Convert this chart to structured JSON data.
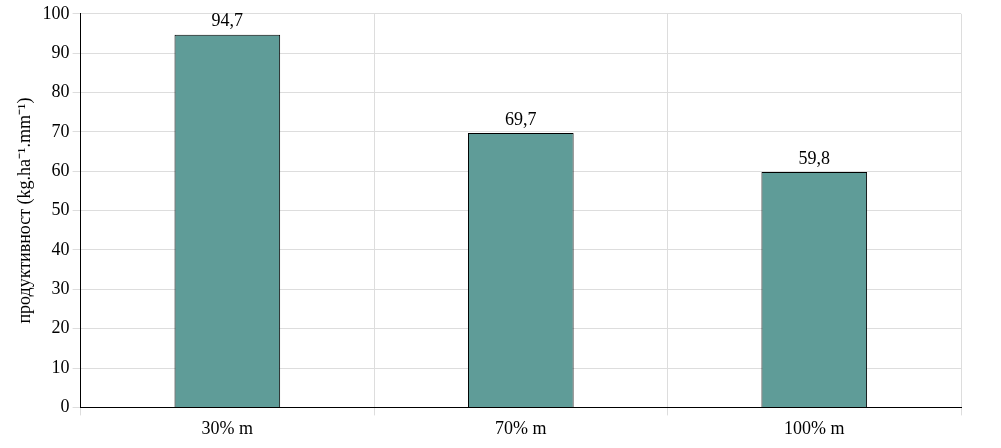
{
  "chart_data": {
    "type": "bar",
    "ylabel": "продуктивност (kg.ha⁻¹.mm⁻¹)",
    "categories": [
      "30% m",
      "70% m",
      "100% m"
    ],
    "values": [
      94.7,
      69.7,
      59.8
    ],
    "value_labels": [
      "94,7",
      "69,7",
      "59,8"
    ],
    "color": "#5f9c98",
    "ylim": [
      0,
      100
    ],
    "yticks": [
      0,
      10,
      20,
      30,
      40,
      50,
      60,
      70,
      80,
      90,
      100
    ],
    "grid": true
  }
}
